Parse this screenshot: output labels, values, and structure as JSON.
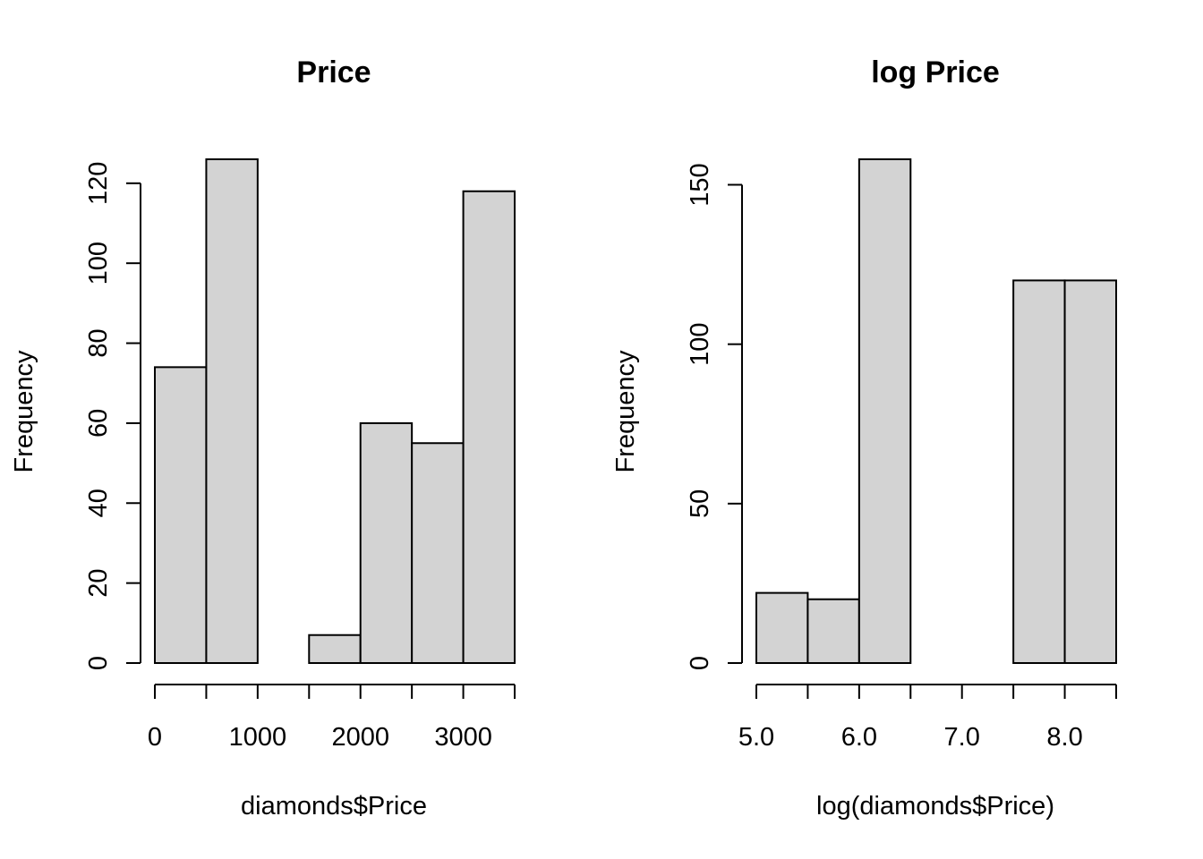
{
  "chart_data": [
    {
      "type": "histogram",
      "title": "Price",
      "xlabel": "diamonds$Price",
      "ylabel": "Frequency",
      "bins": [
        {
          "from": 0,
          "to": 500,
          "count": 74
        },
        {
          "from": 500,
          "to": 1000,
          "count": 126
        },
        {
          "from": 1000,
          "to": 1500,
          "count": 0
        },
        {
          "from": 1500,
          "to": 2000,
          "count": 7
        },
        {
          "from": 2000,
          "to": 2500,
          "count": 60
        },
        {
          "from": 2500,
          "to": 3000,
          "count": 55
        },
        {
          "from": 3000,
          "to": 3500,
          "count": 118
        }
      ],
      "xlim": [
        0,
        3500
      ],
      "ylim": [
        0,
        126
      ],
      "x_axis_ticks": [
        0,
        500,
        1000,
        1500,
        2000,
        2500,
        3000,
        3500
      ],
      "x_tick_labels": [
        "0",
        "",
        "1000",
        "",
        "2000",
        "",
        "3000",
        ""
      ],
      "y_ticks": [
        0,
        20,
        40,
        60,
        80,
        100,
        120
      ],
      "y_tick_labels": [
        "0",
        "20",
        "40",
        "60",
        "80",
        "100",
        "120"
      ],
      "grid": false,
      "colors": {
        "bar_fill": "#d3d3d3",
        "bar_stroke": "#000000"
      }
    },
    {
      "type": "histogram",
      "title": "log Price",
      "xlabel": "log(diamonds$Price)",
      "ylabel": "Frequency",
      "bins": [
        {
          "from": 5.0,
          "to": 5.5,
          "count": 22
        },
        {
          "from": 5.5,
          "to": 6.0,
          "count": 20
        },
        {
          "from": 6.0,
          "to": 6.5,
          "count": 158
        },
        {
          "from": 6.5,
          "to": 7.0,
          "count": 0
        },
        {
          "from": 7.0,
          "to": 7.5,
          "count": 0
        },
        {
          "from": 7.5,
          "to": 8.0,
          "count": 120
        },
        {
          "from": 8.0,
          "to": 8.5,
          "count": 120
        }
      ],
      "xlim": [
        5.0,
        8.5
      ],
      "ylim": [
        0,
        158
      ],
      "x_axis_ticks": [
        5.0,
        5.5,
        6.0,
        6.5,
        7.0,
        7.5,
        8.0,
        8.5
      ],
      "x_tick_labels": [
        "5.0",
        "",
        "6.0",
        "",
        "7.0",
        "",
        "8.0",
        ""
      ],
      "y_ticks": [
        0,
        50,
        100,
        150
      ],
      "y_tick_labels": [
        "0",
        "50",
        "100",
        "150"
      ],
      "grid": false,
      "colors": {
        "bar_fill": "#d3d3d3",
        "bar_stroke": "#000000"
      }
    }
  ]
}
